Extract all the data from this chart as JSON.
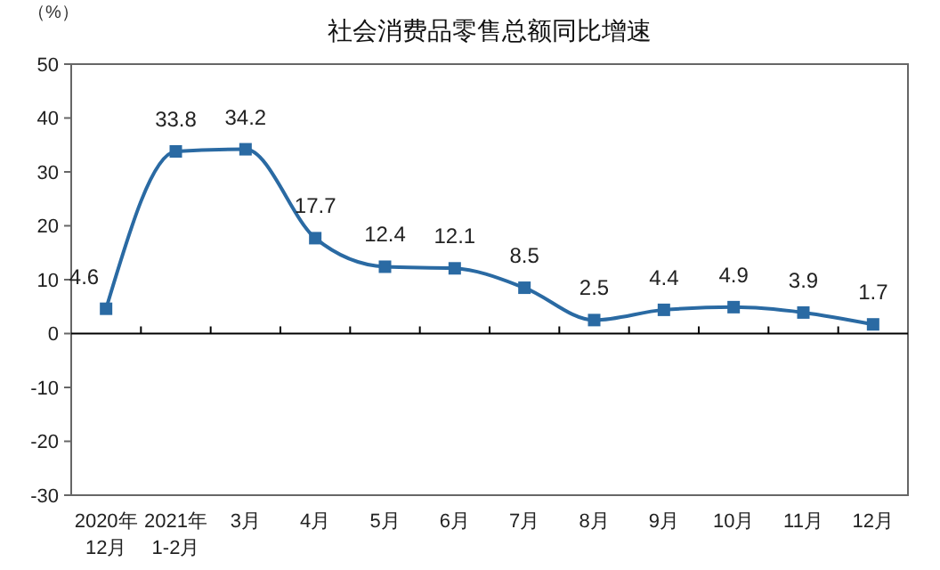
{
  "chart_data": {
    "type": "line",
    "title": "社会消费品零售总额同比增速",
    "ylabel": "（%）",
    "categories": [
      "2020年\n12月",
      "2021年\n1-2月",
      "3月",
      "4月",
      "5月",
      "6月",
      "7月",
      "8月",
      "9月",
      "10月",
      "11月",
      "12月"
    ],
    "series": [
      {
        "color": "#2a6aa3",
        "values": [
          4.6,
          33.8,
          34.2,
          17.7,
          12.4,
          12.1,
          8.5,
          2.5,
          4.4,
          4.9,
          3.9,
          1.7
        ]
      }
    ],
    "ylim": [
      -30,
      50
    ],
    "yticks": [
      -30,
      -20,
      -10,
      0,
      10,
      20,
      30,
      40,
      50
    ],
    "marker": "square",
    "line_style": "solid",
    "data_labels": true
  }
}
